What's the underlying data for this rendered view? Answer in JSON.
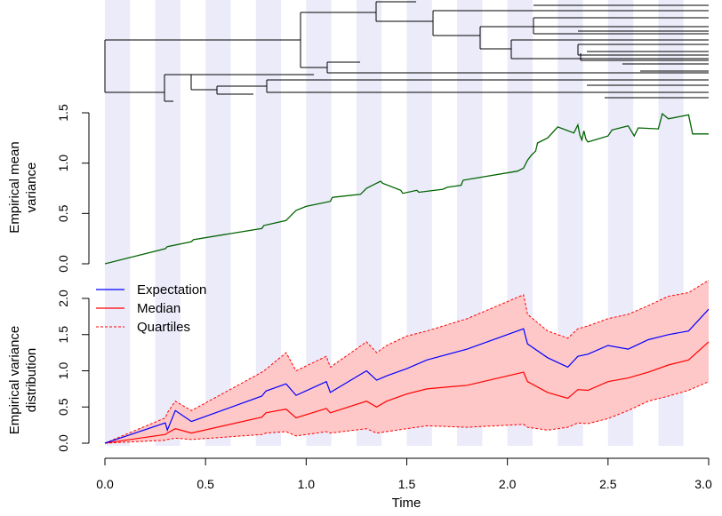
{
  "colors": {
    "band": "#ebebfa",
    "tree": "#000000",
    "mean_line": "#006400",
    "expectation": "#0000ff",
    "median": "#ff0000",
    "quartiles": "#ff0000",
    "quartile_fill": "#ffc8c8"
  },
  "chart_data": [
    {
      "type": "tree",
      "title": "",
      "xlim": [
        0,
        3.0
      ],
      "note_bands": "alternating shaded time bands every 0.125 units"
    },
    {
      "type": "line",
      "xlabel": "",
      "ylabel": "Empirical mean\nvariance",
      "ylabel_lines": [
        "Empirical mean",
        "variance"
      ],
      "xlim": [
        0,
        3.0
      ],
      "ylim": [
        0,
        1.5
      ],
      "yticks": [
        "0.0",
        "0.5",
        "1.0",
        "1.5"
      ],
      "series": [
        {
          "x": [
            0,
            0.3,
            0.31,
            0.43,
            0.44,
            0.78,
            0.79,
            0.9,
            0.92,
            0.95,
            1.0,
            1.12,
            1.13,
            1.27,
            1.3,
            1.33,
            1.37,
            1.38,
            1.47,
            1.48,
            1.55,
            1.56,
            1.68,
            1.7,
            1.77,
            1.78,
            2.05,
            2.08,
            2.1,
            2.12,
            2.14,
            2.15,
            2.2,
            2.25,
            2.33,
            2.35,
            2.36,
            2.37,
            2.38,
            2.39,
            2.4,
            2.5,
            2.52,
            2.6,
            2.63,
            2.65,
            2.75,
            2.77,
            2.8,
            2.9,
            2.92,
            3.0
          ],
          "y": [
            0,
            0.15,
            0.17,
            0.22,
            0.24,
            0.35,
            0.38,
            0.43,
            0.47,
            0.53,
            0.57,
            0.62,
            0.66,
            0.69,
            0.75,
            0.78,
            0.82,
            0.8,
            0.73,
            0.7,
            0.73,
            0.71,
            0.74,
            0.76,
            0.78,
            0.83,
            0.92,
            0.95,
            1.03,
            1.08,
            1.12,
            1.2,
            1.25,
            1.36,
            1.3,
            1.38,
            1.28,
            1.23,
            1.32,
            1.24,
            1.21,
            1.27,
            1.33,
            1.37,
            1.27,
            1.35,
            1.34,
            1.49,
            1.44,
            1.48,
            1.29,
            1.29
          ]
        }
      ]
    },
    {
      "type": "line",
      "xlabel": "Time",
      "ylabel": "Empirical variance\ndistribution",
      "ylabel_lines": [
        "Empirical variance",
        "distribution"
      ],
      "xlim": [
        0,
        3.0
      ],
      "ylim": [
        0,
        2.0
      ],
      "xticks": [
        "0.0",
        "0.5",
        "1.0",
        "1.5",
        "2.0",
        "2.5",
        "3.0"
      ],
      "yticks": [
        "0.0",
        "0.5",
        "1.0",
        "1.5",
        "2.0"
      ],
      "legend": {
        "placement": "top-left",
        "entries": [
          "Expectation",
          "Median",
          "Quartiles"
        ]
      },
      "x": [
        0,
        0.3,
        0.31,
        0.35,
        0.43,
        0.78,
        0.8,
        0.9,
        0.95,
        1.1,
        1.12,
        1.3,
        1.35,
        1.4,
        1.5,
        1.6,
        1.8,
        2.08,
        2.1,
        2.2,
        2.3,
        2.35,
        2.4,
        2.5,
        2.6,
        2.7,
        2.8,
        2.9,
        3.0
      ],
      "series": [
        {
          "name": "Expectation",
          "values": [
            0,
            0.28,
            0.18,
            0.45,
            0.3,
            0.65,
            0.72,
            0.82,
            0.66,
            0.85,
            0.7,
            1.0,
            0.87,
            0.93,
            1.03,
            1.15,
            1.3,
            1.58,
            1.37,
            1.18,
            1.05,
            1.2,
            1.23,
            1.35,
            1.3,
            1.43,
            1.5,
            1.55,
            1.85
          ]
        },
        {
          "name": "Median",
          "values": [
            0,
            0.12,
            0.14,
            0.2,
            0.14,
            0.36,
            0.42,
            0.47,
            0.35,
            0.48,
            0.42,
            0.58,
            0.5,
            0.58,
            0.68,
            0.75,
            0.8,
            0.98,
            0.85,
            0.7,
            0.62,
            0.74,
            0.73,
            0.85,
            0.9,
            0.98,
            1.08,
            1.15,
            1.4
          ]
        },
        {
          "name": "Quartiles (lower)",
          "values": [
            0,
            0.04,
            0.05,
            0.07,
            0.05,
            0.12,
            0.14,
            0.16,
            0.1,
            0.16,
            0.14,
            0.2,
            0.14,
            0.16,
            0.2,
            0.24,
            0.22,
            0.26,
            0.22,
            0.18,
            0.22,
            0.28,
            0.27,
            0.34,
            0.45,
            0.58,
            0.65,
            0.73,
            0.85
          ]
        },
        {
          "name": "Quartiles (upper)",
          "values": [
            0,
            0.35,
            0.42,
            0.58,
            0.45,
            0.98,
            1.02,
            1.25,
            1.0,
            1.2,
            1.05,
            1.4,
            1.25,
            1.35,
            1.48,
            1.55,
            1.72,
            2.05,
            1.78,
            1.55,
            1.45,
            1.58,
            1.62,
            1.72,
            1.78,
            1.9,
            2.03,
            2.08,
            2.25
          ]
        }
      ]
    }
  ]
}
